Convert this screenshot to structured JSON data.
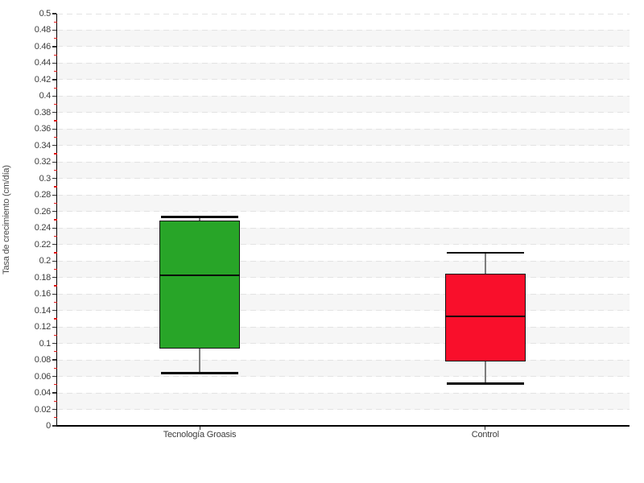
{
  "figure": {
    "background_color": "#ffffff",
    "band_color_light": "#ffffff",
    "band_color_shaded": "#f6f6f6",
    "gridline_color": "#e3e3e3",
    "axis_color": "#000000",
    "major_tick_color": "#2f2f2f",
    "minor_tick_color": "#dd1414",
    "tick_label_color": "#3c3c3c"
  },
  "chart_data": {
    "type": "box",
    "title": "",
    "xlabel": "",
    "ylabel": "Tasa de crecimiento (cm/día)",
    "ylim": [
      0,
      0.5
    ],
    "ytick_step": 0.02,
    "ytick_labels": [
      "0",
      "0.02",
      "0.04",
      "0.06",
      "0.08",
      "0.1",
      "0.12",
      "0.14",
      "0.16",
      "0.18",
      "0.2",
      "0.22",
      "0.24",
      "0.26",
      "0.28",
      "0.3",
      "0.32",
      "0.34",
      "0.36",
      "0.38",
      "0.4",
      "0.42",
      "0.44",
      "0.46",
      "0.48",
      "0.5"
    ],
    "minor_tick_interval": 0.01,
    "grid": "horizontal dashed at every 0.02, alternating shaded bands",
    "legend": "none",
    "categories": [
      "Tecnología Groasis",
      "Control"
    ],
    "category_positions": [
      0.249,
      0.748
    ],
    "boxes": [
      {
        "name": "Tecnología Groasis",
        "fill_color": "#28a528",
        "whisker_low": 0.064,
        "q1": 0.094,
        "median": 0.183,
        "q3": 0.249,
        "whisker_high": 0.2535
      },
      {
        "name": "Control",
        "fill_color": "#f90f2b",
        "whisker_low": 0.051,
        "q1": 0.078,
        "median": 0.133,
        "q3": 0.185,
        "whisker_high": 0.21
      }
    ]
  }
}
